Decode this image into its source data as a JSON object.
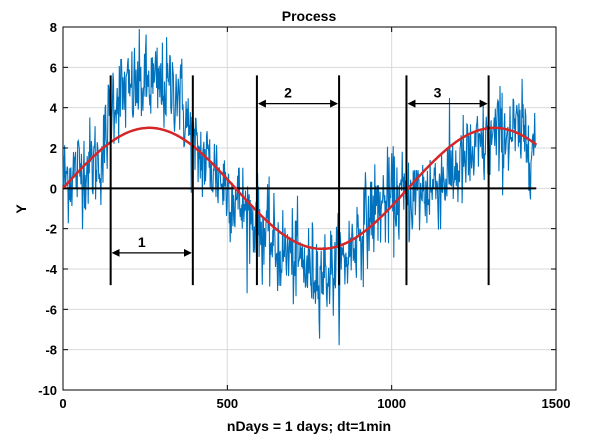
{
  "chart_data": {
    "type": "line",
    "title": "Process",
    "xlabel": "nDays = 1 days;  dt=1min",
    "ylabel": "Y",
    "xlim": [
      0,
      1500
    ],
    "ylim": [
      -10,
      8
    ],
    "xticks": [
      0,
      500,
      1000,
      1500
    ],
    "yticks": [
      -10,
      -8,
      -6,
      -4,
      -2,
      0,
      2,
      4,
      6,
      8
    ],
    "grid": true,
    "colors": {
      "noisy": "#0072BD",
      "clean": "#D62728",
      "marker": "#000000"
    },
    "series": [
      {
        "description_key": "noisy",
        "x_range": [
          0,
          1440
        ],
        "clean_amplitude": 3,
        "clean_period": 1050,
        "values_sampled": {
          "x": [
            0,
            60,
            120,
            150,
            200,
            250,
            300,
            350,
            400,
            450,
            500,
            550,
            600,
            650,
            700,
            750,
            800,
            850,
            900,
            950,
            1000,
            1050,
            1100,
            1150,
            1200,
            1250,
            1300,
            1350,
            1400,
            1440
          ],
          "y": [
            0.5,
            1.0,
            1.5,
            4.5,
            4.8,
            5.2,
            5.0,
            5.0,
            1.8,
            1.2,
            0.0,
            -1.0,
            -2.0,
            -3.0,
            -3.4,
            -4.0,
            -4.2,
            -3.8,
            -2.2,
            -1.0,
            -0.5,
            -0.4,
            -0.2,
            0.4,
            1.0,
            1.6,
            2.4,
            2.8,
            2.6,
            2.2
          ]
        }
      },
      {
        "description_key": "clean",
        "values_sampled": {
          "x": [
            0,
            131,
            262,
            394,
            525,
            656,
            787,
            919,
            1050,
            1181,
            1312,
            1440
          ],
          "y": [
            0,
            2.12,
            3.0,
            2.12,
            0,
            -2.12,
            -3.0,
            -2.12,
            0,
            2.12,
            3.0,
            2.16
          ]
        }
      }
    ],
    "markers_x": [
      145,
      395,
      590,
      840,
      1045,
      1295
    ],
    "marker_y_range": [
      -4.8,
      5.6
    ],
    "segments": [
      {
        "label": "1",
        "x_start": 145,
        "x_end": 395,
        "y": -3.2
      },
      {
        "label": "2",
        "x_start": 590,
        "x_end": 840,
        "y": 4.2
      },
      {
        "label": "3",
        "x_start": 1045,
        "x_end": 1295,
        "y": 4.2
      }
    ]
  }
}
